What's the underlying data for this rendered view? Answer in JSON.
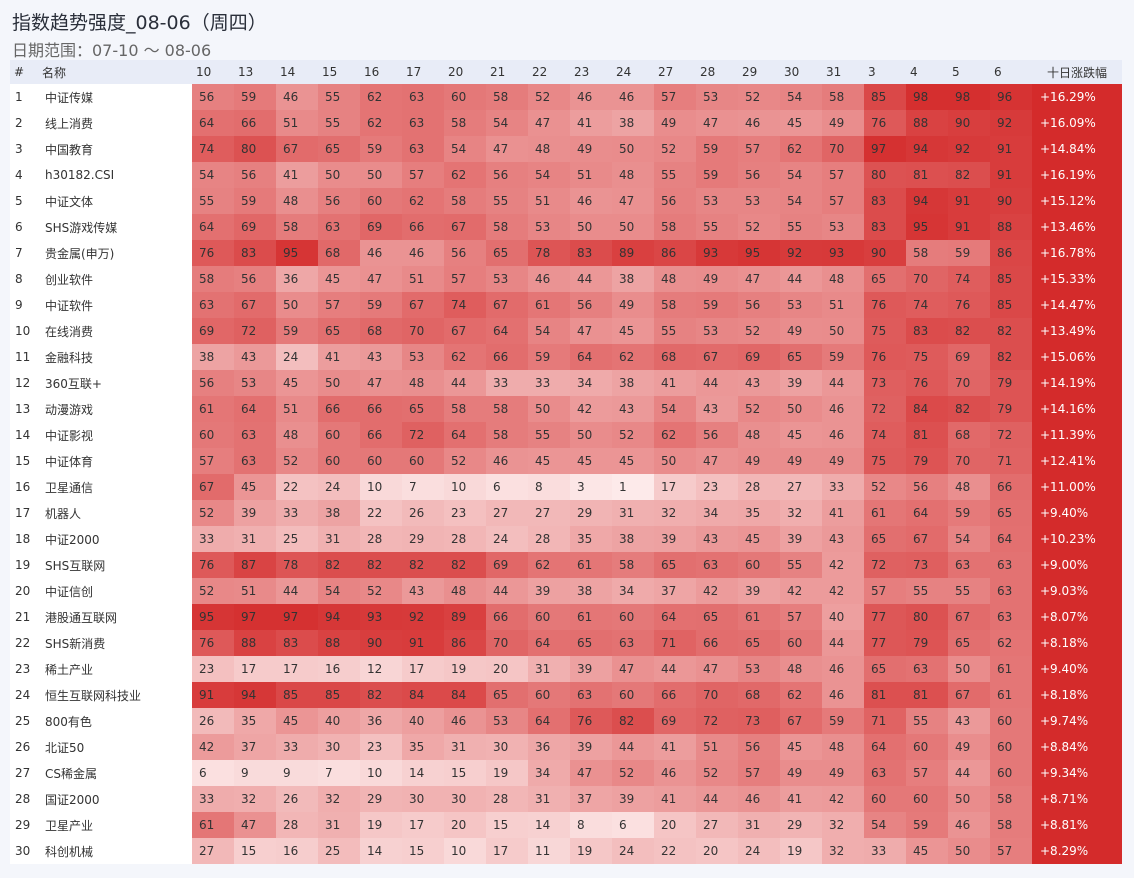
{
  "title": "指数趋势强度_08-06（周四）",
  "subtitle": "日期范围：07-10 ～ 08-06",
  "colors": {
    "header_bg": "#e8ecf7",
    "change_bg": "#d42b2b",
    "low": "#fde9e9",
    "high": "#d42b2b"
  },
  "chart_data": {
    "type": "heatmap",
    "columns": {
      "index": "#",
      "name": "名称",
      "change": "十日涨跌幅"
    },
    "dates": [
      "10",
      "13",
      "14",
      "15",
      "16",
      "17",
      "20",
      "21",
      "22",
      "23",
      "24",
      "27",
      "28",
      "29",
      "30",
      "31",
      "3",
      "4",
      "5",
      "6"
    ],
    "value_range": [
      0,
      100
    ],
    "rows": [
      {
        "idx": "1",
        "name": "中证传媒",
        "values": [
          56,
          59,
          46,
          55,
          62,
          63,
          60,
          58,
          52,
          46,
          46,
          57,
          53,
          52,
          54,
          58,
          85,
          98,
          98,
          96
        ],
        "change": "+16.29%"
      },
      {
        "idx": "2",
        "name": "线上消费",
        "values": [
          64,
          66,
          51,
          55,
          62,
          63,
          58,
          54,
          47,
          41,
          38,
          49,
          47,
          46,
          45,
          49,
          76,
          88,
          90,
          92
        ],
        "change": "+16.09%"
      },
      {
        "idx": "3",
        "name": "中国教育",
        "values": [
          74,
          80,
          67,
          65,
          59,
          63,
          54,
          47,
          48,
          49,
          50,
          52,
          59,
          57,
          62,
          70,
          97,
          94,
          92,
          91
        ],
        "change": "+14.84%"
      },
      {
        "idx": "4",
        "name": "h30182.CSI",
        "values": [
          54,
          56,
          41,
          50,
          50,
          57,
          62,
          56,
          54,
          51,
          48,
          55,
          59,
          56,
          54,
          57,
          80,
          81,
          82,
          91
        ],
        "change": "+16.19%"
      },
      {
        "idx": "5",
        "name": "中证文体",
        "values": [
          55,
          59,
          48,
          56,
          60,
          62,
          58,
          55,
          51,
          46,
          47,
          56,
          53,
          53,
          54,
          57,
          83,
          94,
          91,
          90
        ],
        "change": "+15.12%"
      },
      {
        "idx": "6",
        "name": "SHS游戏传媒",
        "values": [
          64,
          69,
          58,
          63,
          69,
          66,
          67,
          58,
          53,
          50,
          50,
          58,
          55,
          52,
          55,
          53,
          83,
          95,
          91,
          88
        ],
        "change": "+13.46%"
      },
      {
        "idx": "7",
        "name": "贵金属(申万)",
        "values": [
          76,
          83,
          95,
          68,
          46,
          46,
          56,
          65,
          78,
          83,
          89,
          86,
          93,
          95,
          92,
          93,
          90,
          58,
          59,
          86
        ],
        "change": "+16.78%"
      },
      {
        "idx": "8",
        "name": "创业软件",
        "values": [
          58,
          56,
          36,
          45,
          47,
          51,
          57,
          53,
          46,
          44,
          38,
          48,
          49,
          47,
          44,
          48,
          65,
          70,
          74,
          85
        ],
        "change": "+15.33%"
      },
      {
        "idx": "9",
        "name": "中证软件",
        "values": [
          63,
          67,
          50,
          57,
          59,
          67,
          74,
          67,
          61,
          56,
          49,
          58,
          59,
          56,
          53,
          51,
          76,
          74,
          76,
          85
        ],
        "change": "+14.47%"
      },
      {
        "idx": "10",
        "name": "在线消费",
        "values": [
          69,
          72,
          59,
          65,
          68,
          70,
          67,
          64,
          54,
          47,
          45,
          55,
          53,
          52,
          49,
          50,
          75,
          83,
          82,
          82
        ],
        "change": "+13.49%"
      },
      {
        "idx": "11",
        "name": "金融科技",
        "values": [
          38,
          43,
          24,
          41,
          43,
          53,
          62,
          66,
          59,
          64,
          62,
          68,
          67,
          69,
          65,
          59,
          76,
          75,
          69,
          82
        ],
        "change": "+15.06%"
      },
      {
        "idx": "12",
        "name": "360互联+",
        "values": [
          56,
          53,
          45,
          50,
          47,
          48,
          44,
          33,
          33,
          34,
          38,
          41,
          44,
          43,
          39,
          44,
          73,
          76,
          70,
          79
        ],
        "change": "+14.19%"
      },
      {
        "idx": "13",
        "name": "动漫游戏",
        "values": [
          61,
          64,
          51,
          66,
          66,
          65,
          58,
          58,
          50,
          42,
          43,
          54,
          43,
          52,
          50,
          46,
          72,
          84,
          82,
          79
        ],
        "change": "+14.16%"
      },
      {
        "idx": "14",
        "name": "中证影视",
        "values": [
          60,
          63,
          48,
          60,
          66,
          72,
          64,
          58,
          55,
          50,
          52,
          62,
          56,
          48,
          45,
          46,
          74,
          81,
          68,
          72
        ],
        "change": "+11.39%"
      },
      {
        "idx": "15",
        "name": "中证体育",
        "values": [
          57,
          63,
          52,
          60,
          60,
          60,
          52,
          46,
          45,
          45,
          45,
          50,
          47,
          49,
          49,
          49,
          75,
          79,
          70,
          71
        ],
        "change": "+12.41%"
      },
      {
        "idx": "16",
        "name": "卫星通信",
        "values": [
          67,
          45,
          22,
          24,
          10,
          7,
          10,
          6,
          8,
          3,
          1,
          17,
          23,
          28,
          27,
          33,
          52,
          56,
          48,
          66
        ],
        "change": "+11.00%"
      },
      {
        "idx": "17",
        "name": "机器人",
        "values": [
          52,
          39,
          33,
          38,
          22,
          26,
          23,
          27,
          27,
          29,
          31,
          32,
          34,
          35,
          32,
          41,
          61,
          64,
          59,
          65
        ],
        "change": "+9.40%"
      },
      {
        "idx": "18",
        "name": "中证2000",
        "values": [
          33,
          31,
          25,
          31,
          28,
          29,
          28,
          24,
          28,
          35,
          38,
          39,
          43,
          45,
          39,
          43,
          65,
          67,
          54,
          64
        ],
        "change": "+10.23%"
      },
      {
        "idx": "19",
        "name": "SHS互联网",
        "values": [
          76,
          87,
          78,
          82,
          82,
          82,
          82,
          69,
          62,
          61,
          58,
          65,
          63,
          60,
          55,
          42,
          72,
          73,
          63,
          63
        ],
        "change": "+9.00%"
      },
      {
        "idx": "20",
        "name": "中证信创",
        "values": [
          52,
          51,
          44,
          54,
          52,
          43,
          48,
          44,
          39,
          38,
          34,
          37,
          42,
          39,
          42,
          42,
          57,
          55,
          55,
          63
        ],
        "change": "+9.03%"
      },
      {
        "idx": "21",
        "name": "港股通互联网",
        "values": [
          95,
          97,
          97,
          94,
          93,
          92,
          89,
          66,
          60,
          61,
          60,
          64,
          65,
          61,
          57,
          40,
          77,
          80,
          67,
          63
        ],
        "change": "+8.07%"
      },
      {
        "idx": "22",
        "name": "SHS新消费",
        "values": [
          76,
          88,
          83,
          88,
          90,
          91,
          86,
          70,
          64,
          65,
          63,
          71,
          66,
          65,
          60,
          44,
          77,
          79,
          65,
          62
        ],
        "change": "+8.18%"
      },
      {
        "idx": "23",
        "name": "稀土产业",
        "values": [
          23,
          17,
          17,
          16,
          12,
          17,
          19,
          20,
          31,
          39,
          47,
          44,
          47,
          53,
          48,
          46,
          65,
          63,
          50,
          61
        ],
        "change": "+9.40%"
      },
      {
        "idx": "24",
        "name": "恒生互联网科技业",
        "values": [
          91,
          94,
          85,
          85,
          82,
          84,
          84,
          65,
          60,
          63,
          60,
          66,
          70,
          68,
          62,
          46,
          81,
          81,
          67,
          61
        ],
        "change": "+8.18%"
      },
      {
        "idx": "25",
        "name": "800有色",
        "values": [
          26,
          35,
          45,
          40,
          36,
          40,
          46,
          53,
          64,
          76,
          82,
          69,
          72,
          73,
          67,
          59,
          71,
          55,
          43,
          60
        ],
        "change": "+9.74%"
      },
      {
        "idx": "26",
        "name": "北证50",
        "values": [
          42,
          37,
          33,
          30,
          23,
          35,
          31,
          30,
          36,
          39,
          44,
          41,
          51,
          56,
          45,
          48,
          64,
          60,
          49,
          60
        ],
        "change": "+8.84%"
      },
      {
        "idx": "27",
        "name": "CS稀金属",
        "values": [
          6,
          9,
          9,
          7,
          10,
          14,
          15,
          19,
          34,
          47,
          52,
          46,
          52,
          57,
          49,
          49,
          63,
          57,
          44,
          60
        ],
        "change": "+9.34%"
      },
      {
        "idx": "28",
        "name": "国证2000",
        "values": [
          33,
          32,
          26,
          32,
          29,
          30,
          30,
          28,
          31,
          37,
          39,
          41,
          44,
          46,
          41,
          42,
          60,
          60,
          50,
          58
        ],
        "change": "+8.71%"
      },
      {
        "idx": "29",
        "name": "卫星产业",
        "values": [
          61,
          47,
          28,
          31,
          19,
          17,
          20,
          15,
          14,
          8,
          6,
          20,
          27,
          31,
          29,
          32,
          54,
          59,
          46,
          58
        ],
        "change": "+8.81%"
      },
      {
        "idx": "30",
        "name": "科创机械",
        "values": [
          27,
          15,
          16,
          25,
          14,
          15,
          10,
          17,
          11,
          19,
          24,
          22,
          20,
          24,
          19,
          32,
          33,
          45,
          50,
          57
        ],
        "change": "+8.29%"
      }
    ]
  }
}
